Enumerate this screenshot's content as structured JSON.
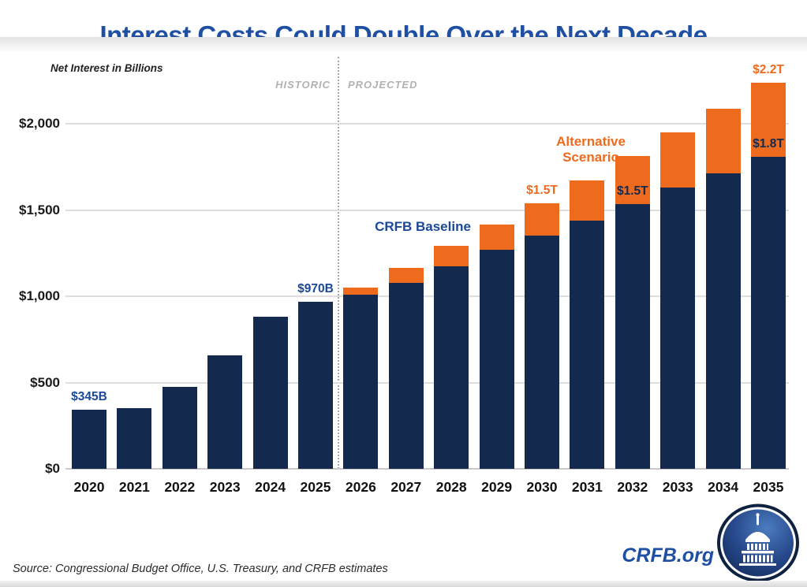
{
  "title": "Interest Costs Could Double Over the Next Decade",
  "chart_data": {
    "type": "bar",
    "stacked": true,
    "title": "Interest Costs Could Double Over the Next Decade",
    "axis_label": "Net Interest in Billions",
    "section_labels": {
      "historic": "HISTORIC",
      "projected": "PROJECTED"
    },
    "historic_through": 2025,
    "categories": [
      2020,
      2021,
      2022,
      2023,
      2024,
      2025,
      2026,
      2027,
      2028,
      2029,
      2030,
      2031,
      2032,
      2033,
      2034,
      2035
    ],
    "series": [
      {
        "name": "CRFB Baseline",
        "color": "#14294e",
        "values": [
          345,
          352,
          475,
          659,
          881,
          970,
          1010,
          1080,
          1175,
          1270,
          1355,
          1440,
          1535,
          1630,
          1715,
          1810
        ]
      },
      {
        "name": "Alternative Scenario",
        "color": "#ee6b1e",
        "note": "stacked on top of baseline for projected years only",
        "totals": [
          null,
          null,
          null,
          null,
          null,
          null,
          1050,
          1165,
          1295,
          1415,
          1540,
          1675,
          1815,
          1950,
          2090,
          2240
        ]
      }
    ],
    "ylim": [
      0,
      2250
    ],
    "yticks": [
      {
        "value": 2000,
        "label": "$2,000"
      },
      {
        "value": 1500,
        "label": "$1,500"
      },
      {
        "value": 1000,
        "label": "$1,000"
      },
      {
        "value": 500,
        "label": "$500"
      },
      {
        "value": 0,
        "label": "$0"
      }
    ],
    "grid": "horizontal",
    "legend": "inline-annotations",
    "annotations": [
      {
        "text": "$345B",
        "year": 2020,
        "placement": "above-bar",
        "color": "#1b4898"
      },
      {
        "text": "$970B",
        "year": 2025,
        "placement": "above-bar",
        "color": "#1b4898"
      },
      {
        "text": "CRFB Baseline",
        "placement": "free",
        "color": "#1b4898"
      },
      {
        "text": "Alternative Scenario",
        "placement": "free",
        "color": "#ee6b1e"
      },
      {
        "text": "$1.5T",
        "year": 2030,
        "placement": "above-bar",
        "color": "#ee6b1e"
      },
      {
        "text": "$1.5T",
        "year": 2032,
        "placement": "on-baseline-top",
        "color": "#14294e"
      },
      {
        "text": "$2.2T",
        "year": 2035,
        "placement": "above-bar",
        "color": "#ee6b1e"
      },
      {
        "text": "$1.8T",
        "year": 2035,
        "placement": "on-baseline-top",
        "color": "#14294e"
      }
    ]
  },
  "colors": {
    "baseline_navy": "#14294e",
    "alternative_orange": "#ee6b1e",
    "title_blue": "#1e4fa3",
    "gridline": "#dedede",
    "section_gray": "#b2b2b2"
  },
  "footer": {
    "source": "Source: Congressional Budget Office, U.S. Treasury, and CRFB estimates",
    "site": "CRFB.org"
  }
}
